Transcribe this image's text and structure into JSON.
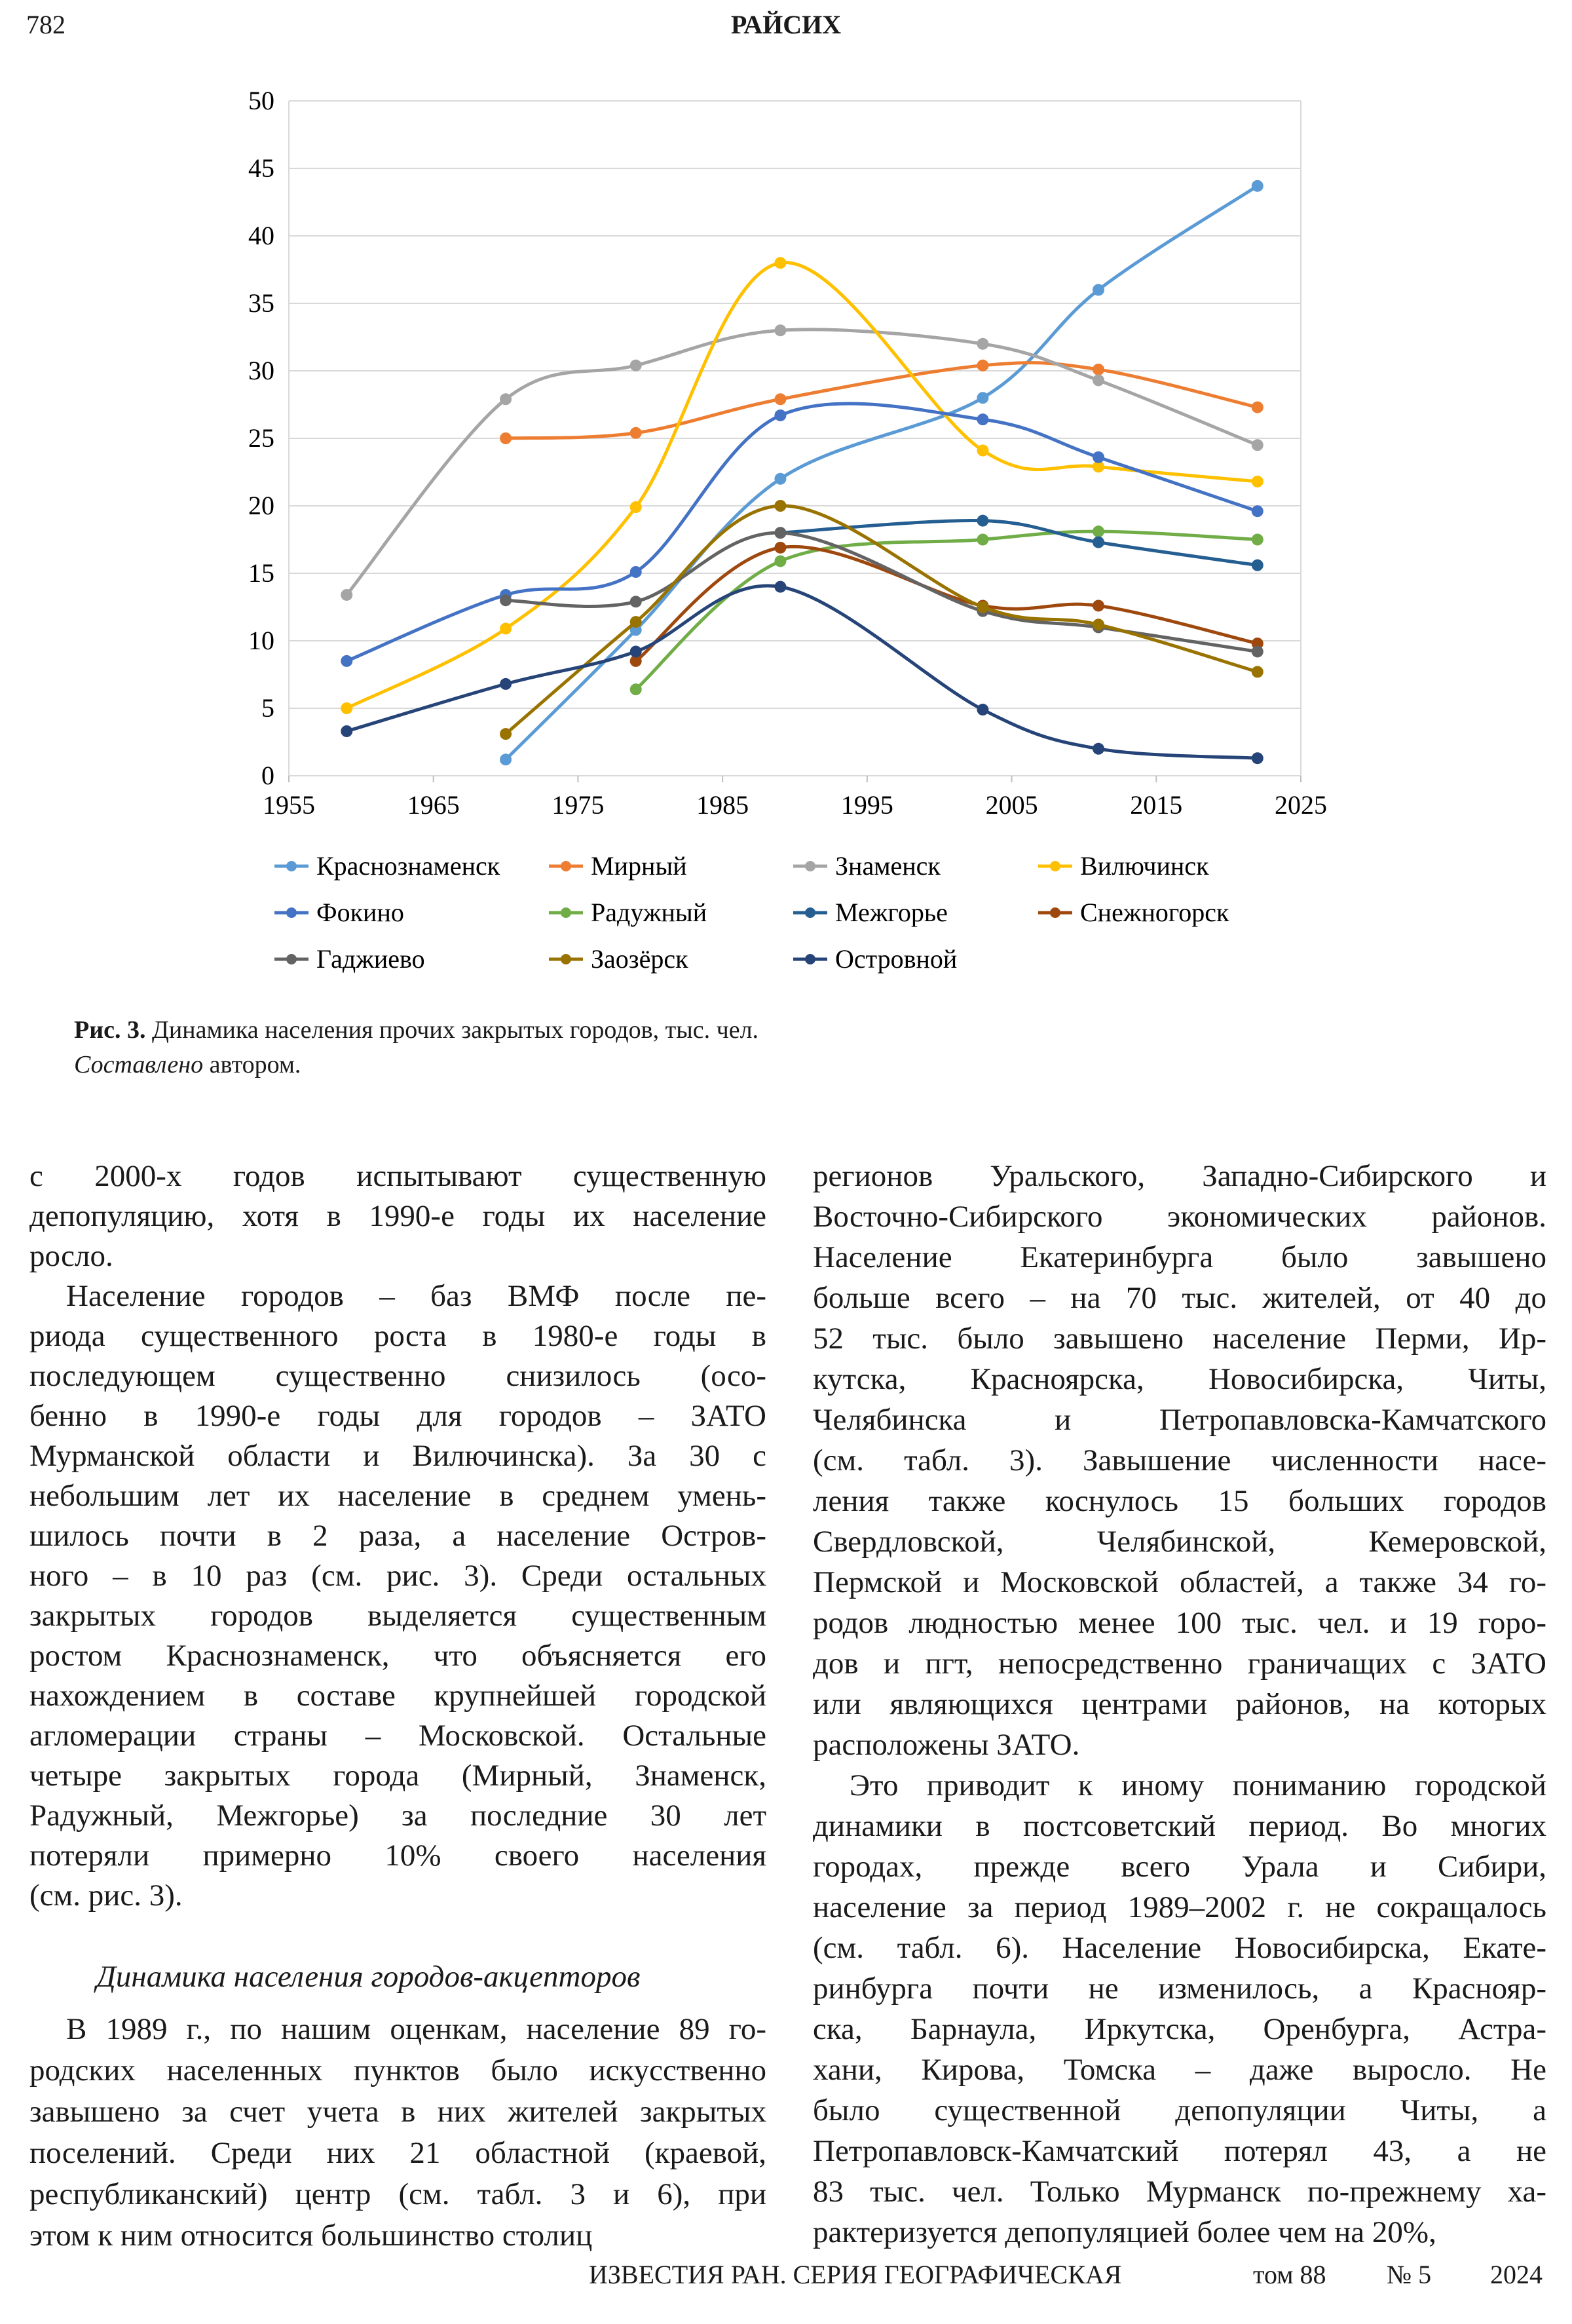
{
  "header": {
    "page_number": "782",
    "running_title": "РАЙСИХ"
  },
  "chart_data": {
    "type": "line",
    "x": [
      1959,
      1970,
      1979,
      1989,
      2003,
      2011,
      2022
    ],
    "xlim": [
      1955,
      2025
    ],
    "xticks": [
      1955,
      1965,
      1975,
      1985,
      1995,
      2005,
      2015,
      2025
    ],
    "ylim": [
      0,
      50
    ],
    "yticks": [
      0,
      5,
      10,
      15,
      20,
      25,
      30,
      35,
      40,
      45,
      50
    ],
    "grid": true,
    "legend": "bottom",
    "series": [
      {
        "name": "Краснознаменск",
        "color": "#5b9bd5",
        "values": [
          null,
          1.2,
          10.8,
          22,
          28,
          36,
          43.7
        ]
      },
      {
        "name": "Мирный",
        "color": "#ed7d31",
        "values": [
          null,
          25,
          25.4,
          27.9,
          30.4,
          30.1,
          27.3
        ]
      },
      {
        "name": "Знаменск",
        "color": "#a5a5a5",
        "values": [
          13.4,
          27.9,
          30.4,
          33,
          32,
          29.3,
          24.5
        ]
      },
      {
        "name": "Вилючинск",
        "color": "#ffc000",
        "values": [
          5,
          10.9,
          19.9,
          38,
          24.1,
          22.9,
          21.8
        ]
      },
      {
        "name": "Фокино",
        "color": "#4472c4",
        "values": [
          8.5,
          13.4,
          15.1,
          26.7,
          26.4,
          23.6,
          19.6
        ]
      },
      {
        "name": "Радужный",
        "color": "#70ad47",
        "values": [
          null,
          null,
          6.4,
          15.9,
          17.5,
          18.1,
          17.5
        ]
      },
      {
        "name": "Межгорье",
        "color": "#255e91",
        "values": [
          null,
          null,
          null,
          18,
          18.9,
          17.3,
          15.6
        ]
      },
      {
        "name": "Снежногорск",
        "color": "#9e480e",
        "values": [
          null,
          null,
          8.5,
          16.9,
          12.6,
          12.6,
          9.8
        ]
      },
      {
        "name": "Гаджиево",
        "color": "#636363",
        "values": [
          null,
          13,
          12.9,
          18,
          12.2,
          11,
          9.2
        ]
      },
      {
        "name": "Заозёрск",
        "color": "#997300",
        "values": [
          null,
          3.1,
          11.4,
          20,
          12.5,
          11.2,
          7.7
        ]
      },
      {
        "name": "Островной",
        "color": "#264478",
        "values": [
          3.3,
          6.8,
          9.2,
          14,
          4.9,
          2,
          1.3
        ]
      }
    ]
  },
  "caption": {
    "label": "Рис. 3.",
    "text": "Динамика населения прочих закрытых городов, тыс. чел.",
    "source_italic": "Составлено",
    "source": "автором."
  },
  "left_column": {
    "paragraphs": [
      [
        "с 2000-х годов испытывают существенную",
        "депопуляцию, хотя в 1990-е годы их население",
        "росло."
      ],
      [
        "Население городов – баз ВМФ после пе-",
        "риода существенного роста в 1980-е годы в",
        "последующем существенно снизилось (осо-",
        "бенно в 1990-е годы для городов – ЗАТО",
        "Мурманской области и Вилючинска). За 30 с",
        "небольшим лет их население в среднем умень-",
        "шилось почти в 2 раза, а население Остров-",
        "ного – в 10 раз (см. рис. 3). Среди остальных",
        "закрытых городов выделяется существенным",
        "ростом Краснознаменск, что объясняется его",
        "нахождением в составе крупнейшей городской",
        "агломерации страны – Московской. Остальные",
        "четыре закрытых города (Мирный, Знаменск,",
        "Радужный, Межгорье) за последние 30 лет",
        "потеряли примерно 10% своего населения",
        "(см. рис. 3)."
      ]
    ],
    "heading": "Динамика населения городов-акцепторов",
    "paragraphs_after": [
      [
        "В 1989 г., по нашим оценкам, население 89 го-",
        "родских населенных пунктов было искусственно",
        "завышено за счет учета в них жителей закрытых",
        "поселений. Среди них 21 областной (краевой,",
        "республиканский) центр (см. табл. 3 и 6), при",
        "этом к ним относится большинство столиц"
      ]
    ]
  },
  "right_column": {
    "paragraphs": [
      [
        "регионов Уральского, Западно-Сибирского и",
        "Восточно-Сибирского экономических районов.",
        "Население Екатеринбурга было завышено",
        "больше всего – на 70 тыс. жителей, от 40 до",
        "52 тыс. было завышено население Перми, Ир-",
        "кутска, Красноярска, Новосибирска, Читы,",
        "Челябинска и Петропавловска-Камчатского",
        "(см. табл. 3). Завышение численности насе-",
        "ления также коснулось 15 больших городов",
        "Свердловской, Челябинской, Кемеровской,",
        "Пермской и Московской областей, а также 34 го-",
        "родов людностью менее 100 тыс. чел. и 19 горо-",
        "дов и пгт, непосредственно граничащих с ЗАТО",
        "или являющихся центрами районов, на которых",
        "расположены ЗАТО."
      ],
      [
        "Это приводит к иному пониманию городской",
        "динамики в постсоветский период. Во многих",
        "городах, прежде всего Урала и Сибири,",
        "население за период 1989–2002 г. не сокращалось",
        "(см. табл. 6). Население Новосибирска, Екате-",
        "ринбурга почти не изменилось, а Краснояр-",
        "ска, Барнаула, Иркутска, Оренбурга, Астра-",
        "хани, Кирова, Томска – даже выросло. Не",
        "было существенной депопуляции Читы, а",
        "Петропавловск-Камчатский потерял 43, а не",
        "83 тыс. чел. Только Мурманск по-прежнему ха-",
        "рактеризуется депопуляцией более чем на 20%,"
      ]
    ]
  },
  "footer": {
    "journal": "ИЗВЕСТИЯ РАН. СЕРИЯ ГЕОГРАФИЧЕСКАЯ",
    "volume": "том 88",
    "issue": "№ 5",
    "year": "2024"
  }
}
